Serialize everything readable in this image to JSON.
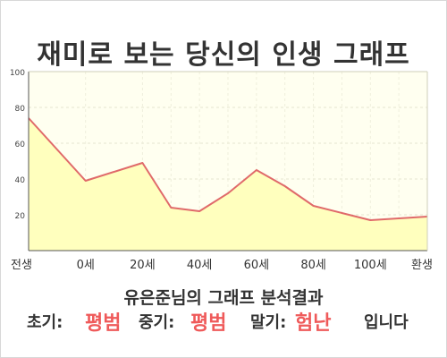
{
  "title": "재미로 보는 당신의 인생 그래프",
  "summary": "유은준님의 그래프 분석결과",
  "verdict": {
    "early_label": "초기:",
    "early_value": "평범",
    "mid_label": "중기:",
    "mid_value": "평범",
    "late_label": "말기:",
    "late_value": "험난",
    "suffix": "입니다"
  },
  "colors": {
    "line": "#e06a6a",
    "fill": "#ffffbe",
    "plot_bg": "#fffff0",
    "accent": "#ef5a5a"
  },
  "chart_data": {
    "type": "area",
    "title": "재미로 보는 당신의 인생 그래프",
    "categories": [
      "전생",
      "0세",
      "20세",
      "40세",
      "60세",
      "80세",
      "100세",
      "환생"
    ],
    "x": [
      -20,
      0,
      20,
      30,
      40,
      50,
      60,
      70,
      80,
      90,
      100,
      110,
      120
    ],
    "values": [
      74,
      39,
      49,
      24,
      22,
      32,
      45,
      36,
      25,
      21,
      17,
      18,
      19
    ],
    "ylim": [
      0,
      100
    ],
    "yticks": [
      20,
      40,
      60,
      80,
      100
    ],
    "xlabel": "",
    "ylabel": "",
    "grid": true,
    "legend": "none"
  }
}
